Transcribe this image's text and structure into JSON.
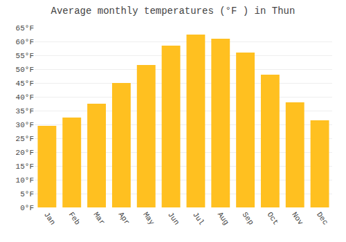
{
  "chart_data": {
    "type": "bar",
    "title": "Average monthly temperatures (°F ) in Thun",
    "categories": [
      "Jan",
      "Feb",
      "Mar",
      "Apr",
      "May",
      "Jun",
      "Jul",
      "Aug",
      "Sep",
      "Oct",
      "Nov",
      "Dec"
    ],
    "values": [
      29.5,
      32.5,
      37.5,
      45.0,
      51.5,
      58.5,
      62.5,
      61.0,
      56.0,
      48.0,
      38.0,
      31.5
    ],
    "color": "#FFC020",
    "ylim": [
      0,
      65
    ],
    "yticks": [
      {
        "value": 0,
        "label": "0°F"
      },
      {
        "value": 5,
        "label": "5°F"
      },
      {
        "value": 10,
        "label": "10°F"
      },
      {
        "value": 15,
        "label": "15°F"
      },
      {
        "value": 20,
        "label": "20°F"
      },
      {
        "value": 25,
        "label": "25°F"
      },
      {
        "value": 30,
        "label": "30°F"
      },
      {
        "value": 35,
        "label": "35°F"
      },
      {
        "value": 40,
        "label": "40°F"
      },
      {
        "value": 45,
        "label": "45°F"
      },
      {
        "value": 50,
        "label": "50°F"
      },
      {
        "value": 55,
        "label": "55°F"
      },
      {
        "value": 60,
        "label": "60°F"
      },
      {
        "value": 65,
        "label": "65°F"
      }
    ],
    "grid": true
  }
}
